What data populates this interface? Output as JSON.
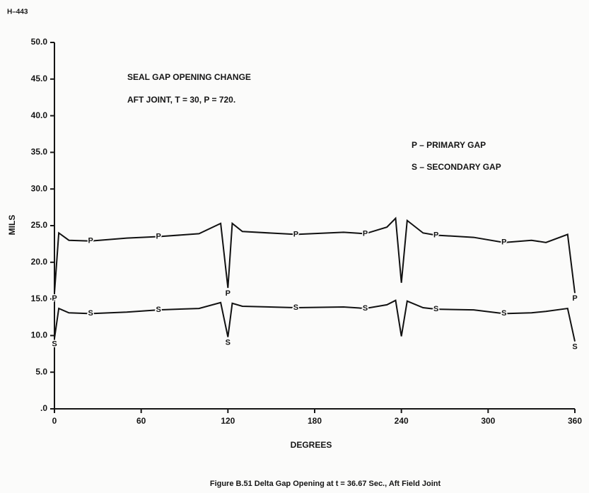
{
  "chart_data": {
    "type": "line",
    "page_id": "H–443",
    "title": "SEAL GAP OPENING CHANGE",
    "subtitle": "AFT JOINT, T = 30, P = 720.",
    "y_label": "MILS",
    "x_label": "DEGREES",
    "caption": "Figure B.51  Delta Gap Opening at t  =  36.67 Sec., Aft Field Joint",
    "x": [
      0,
      3,
      10,
      25,
      50,
      72,
      100,
      115,
      120,
      123,
      130,
      167,
      200,
      215,
      230,
      236,
      240,
      244,
      255,
      264,
      290,
      311,
      330,
      340,
      355,
      360
    ],
    "series": [
      {
        "name": "P – PRIMARY GAP",
        "marker": "P",
        "color": "#111111",
        "marker_x": [
          0,
          25,
          72,
          120,
          167,
          215,
          264,
          311,
          360
        ],
        "values": [
          15.8,
          24.0,
          23.0,
          22.9,
          23.3,
          23.5,
          23.9,
          25.3,
          16.5,
          25.3,
          24.2,
          23.8,
          24.1,
          23.9,
          24.8,
          26.0,
          17.2,
          25.7,
          24.0,
          23.7,
          23.4,
          22.7,
          23.0,
          22.7,
          23.8,
          15.8
        ]
      },
      {
        "name": "S – SECONDARY GAP",
        "marker": "S",
        "color": "#111111",
        "marker_x": [
          0,
          25,
          72,
          120,
          167,
          215,
          264,
          311,
          360
        ],
        "values": [
          9.6,
          13.7,
          13.1,
          13.0,
          13.2,
          13.5,
          13.7,
          14.5,
          9.8,
          14.4,
          14.0,
          13.8,
          13.9,
          13.7,
          14.2,
          14.8,
          9.9,
          14.7,
          13.8,
          13.6,
          13.5,
          13.0,
          13.1,
          13.3,
          13.7,
          9.2
        ]
      }
    ],
    "xlim": [
      0,
      360
    ],
    "xticks": [
      0,
      60,
      120,
      180,
      240,
      300,
      360
    ],
    "ylim": [
      0,
      50
    ],
    "yticks": [
      {
        "value": 0,
        "label": ".0"
      },
      {
        "value": 5,
        "label": "5.0"
      },
      {
        "value": 10,
        "label": "10.0"
      },
      {
        "value": 15,
        "label": "15.0"
      },
      {
        "value": 20,
        "label": "20.0"
      },
      {
        "value": 25,
        "label": "25.0"
      },
      {
        "value": 30,
        "label": "30.0"
      },
      {
        "value": 35,
        "label": "35.0"
      },
      {
        "value": 40,
        "label": "40.0"
      },
      {
        "value": 45,
        "label": "45.0"
      },
      {
        "value": 50,
        "label": "50.0"
      }
    ]
  }
}
